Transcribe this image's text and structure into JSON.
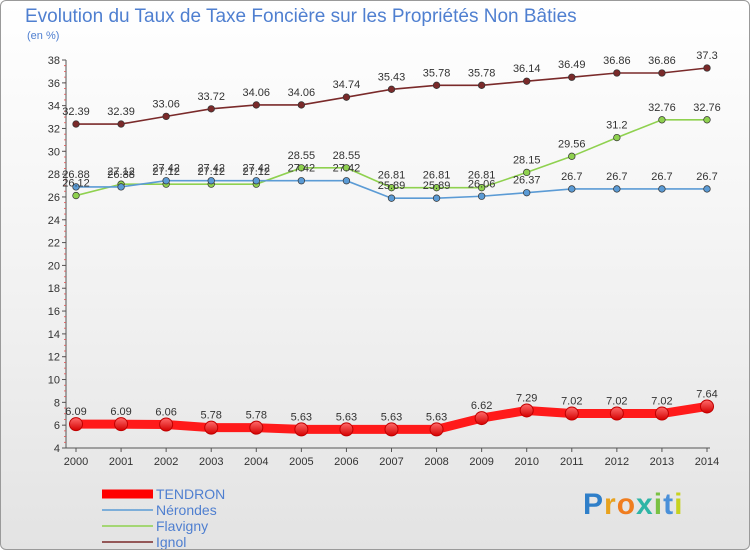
{
  "title": "Evolution du Taux de Taxe Foncière sur les Propriétés Non Bâties",
  "unit": "(en %)",
  "brand": {
    "letters": [
      {
        "t": "P",
        "c": "#2f7fc9"
      },
      {
        "t": "r",
        "c": "#e8a21d"
      },
      {
        "t": "o",
        "c": "#f07d1f"
      },
      {
        "t": "x",
        "c": "#2fb5a6"
      },
      {
        "t": "i",
        "c": "#7ac143"
      },
      {
        "t": "t",
        "c": "#4a90d9"
      },
      {
        "t": "i",
        "c": "#c7d21f"
      }
    ]
  },
  "chart_data": {
    "type": "line",
    "x": [
      "2000",
      "2001",
      "2002",
      "2003",
      "2004",
      "2005",
      "2006",
      "2007",
      "2008",
      "2009",
      "2010",
      "2011",
      "2012",
      "2013",
      "2014"
    ],
    "ylim": [
      4,
      38
    ],
    "yticks": [
      4,
      6,
      8,
      10,
      12,
      14,
      16,
      18,
      20,
      22,
      24,
      26,
      28,
      30,
      32,
      34,
      36,
      38
    ],
    "grid": false,
    "legend_position": "bottom-left",
    "series": [
      {
        "name": "TENDRON",
        "color": "#ff0000",
        "values": [
          6.09,
          6.09,
          6.06,
          5.78,
          5.78,
          5.63,
          5.63,
          5.63,
          5.63,
          6.62,
          7.29,
          7.02,
          7.02,
          7.02,
          7.64
        ],
        "labels": [
          "6.09",
          "6.09",
          "6.06",
          "5.78",
          "5.78",
          "5.63",
          "5.63",
          "5.63",
          "5.63",
          "6.62",
          "7.29",
          "7.02",
          "7.02",
          "7.02",
          "7.64"
        ]
      },
      {
        "name": "Nérondes",
        "color": "#5b9bd5",
        "values": [
          26.88,
          26.88,
          27.42,
          27.42,
          27.42,
          27.42,
          27.42,
          25.89,
          25.89,
          26.06,
          26.37,
          26.7,
          26.7,
          26.7,
          26.7
        ],
        "labels": [
          "26.88",
          "26.88",
          "27.42",
          "27.42",
          "27.42",
          "27.42",
          "27.42",
          "25.89",
          "25.89",
          "26.06",
          "26.37",
          "26.7",
          "26.7",
          "26.7",
          "26.7"
        ]
      },
      {
        "name": "Flavigny",
        "color": "#8fd14f",
        "values": [
          26.12,
          27.12,
          27.12,
          27.12,
          27.12,
          28.55,
          28.55,
          26.81,
          26.81,
          26.81,
          28.15,
          29.56,
          31.2,
          32.76,
          32.76
        ],
        "labels": [
          "26.12",
          "27.12",
          "27.12",
          "27.12",
          "27.12",
          "28.55",
          "28.55",
          "26.81",
          "26.81",
          "26.81",
          "28.15",
          "29.56",
          "31.2",
          "32.76",
          "32.76"
        ]
      },
      {
        "name": "Ignol",
        "color": "#7a2a2a",
        "values": [
          32.39,
          32.39,
          33.06,
          33.72,
          34.06,
          34.06,
          34.74,
          35.43,
          35.78,
          35.78,
          36.14,
          36.49,
          36.86,
          36.86,
          37.3
        ],
        "labels": [
          "32.39",
          "32.39",
          "33.06",
          "33.72",
          "34.06",
          "34.06",
          "34.74",
          "35.43",
          "35.78",
          "35.78",
          "36.14",
          "36.49",
          "36.86",
          "36.86",
          "37.3"
        ]
      }
    ]
  }
}
